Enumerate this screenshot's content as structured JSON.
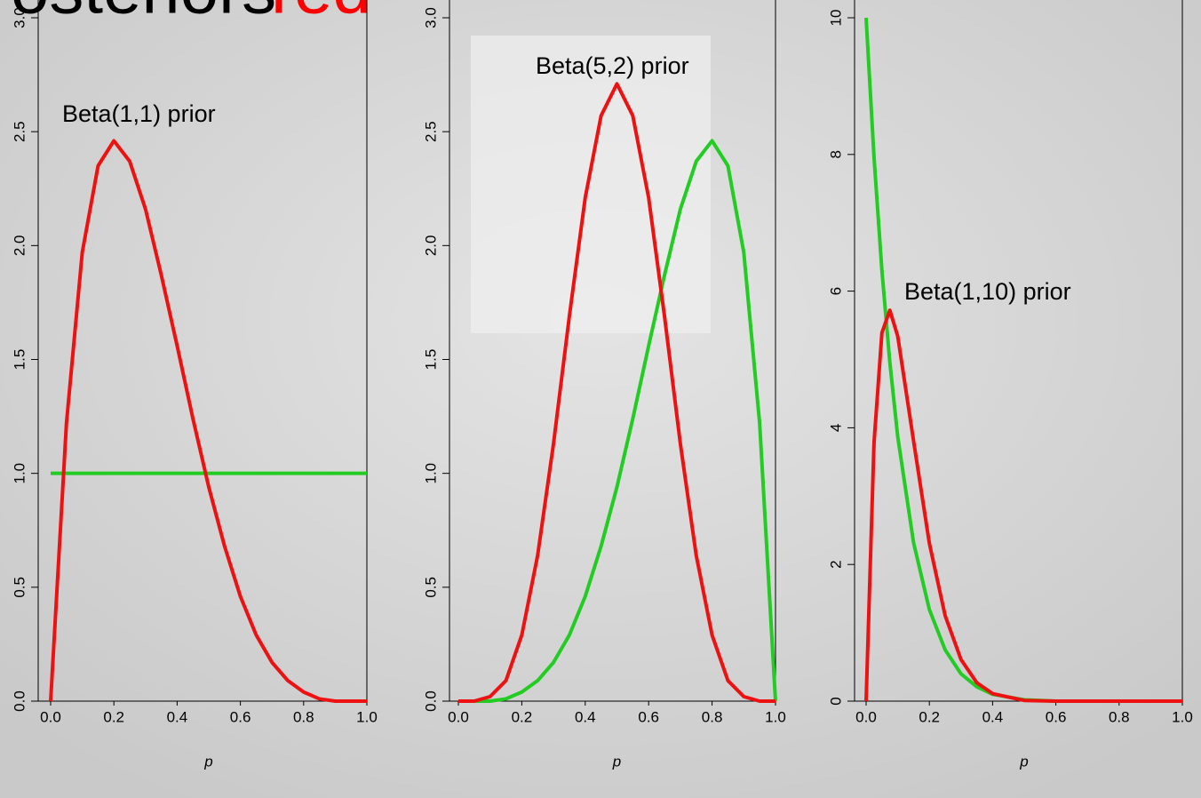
{
  "banner": [
    "Posteriors",
    "red"
  ],
  "chart_data": [
    {
      "type": "line",
      "annotation": "Beta(1,1) prior",
      "xlabel": "p",
      "xlim": [
        0,
        1
      ],
      "ylim": [
        0,
        3
      ],
      "xticks": [
        {
          "value": 0,
          "label": "0.0"
        },
        {
          "value": 0.2,
          "label": "0.2"
        },
        {
          "value": 0.4,
          "label": "0.4"
        },
        {
          "value": 0.6,
          "label": "0.6"
        },
        {
          "value": 0.8,
          "label": "0.8"
        },
        {
          "value": 1,
          "label": "1.0"
        }
      ],
      "yticks": [
        {
          "value": 0,
          "label": "0.0"
        },
        {
          "value": 0.5,
          "label": "0.5"
        },
        {
          "value": 1,
          "label": "1.0"
        },
        {
          "value": 1.5,
          "label": "1.5"
        },
        {
          "value": 2,
          "label": "2.0"
        },
        {
          "value": 2.5,
          "label": "2.5"
        },
        {
          "value": 3,
          "label": "3.0"
        }
      ],
      "series": [
        {
          "color": "#22cc22",
          "x": [
            0,
            1
          ],
          "values": [
            1,
            1
          ]
        },
        {
          "color": "#ee1111",
          "x": [
            0,
            0.05,
            0.1,
            0.15,
            0.2,
            0.25,
            0.3,
            0.35,
            0.4,
            0.45,
            0.5,
            0.55,
            0.6,
            0.65,
            0.7,
            0.75,
            0.8,
            0.85,
            0.9,
            0.95,
            1
          ],
          "values": [
            0,
            1.22,
            1.97,
            2.35,
            2.46,
            2.37,
            2.16,
            1.87,
            1.56,
            1.24,
            0.94,
            0.68,
            0.46,
            0.29,
            0.17,
            0.09,
            0.04,
            0.01,
            0,
            0,
            0
          ]
        }
      ]
    },
    {
      "type": "line",
      "annotation": "Beta(5,2) prior",
      "xlabel": "p",
      "xlim": [
        0,
        1
      ],
      "ylim": [
        0,
        3
      ],
      "xticks": [
        {
          "value": 0,
          "label": "0.0"
        },
        {
          "value": 0.2,
          "label": "0.2"
        },
        {
          "value": 0.4,
          "label": "0.4"
        },
        {
          "value": 0.6,
          "label": "0.6"
        },
        {
          "value": 0.8,
          "label": "0.8"
        },
        {
          "value": 1,
          "label": "1.0"
        }
      ],
      "yticks": [
        {
          "value": 0,
          "label": "0.0"
        },
        {
          "value": 0.5,
          "label": "0.5"
        },
        {
          "value": 1,
          "label": "1.0"
        },
        {
          "value": 1.5,
          "label": "1.5"
        },
        {
          "value": 2,
          "label": "2.0"
        },
        {
          "value": 2.5,
          "label": "2.5"
        },
        {
          "value": 3,
          "label": "3.0"
        }
      ],
      "series": [
        {
          "color": "#22cc22",
          "x": [
            0,
            0.05,
            0.1,
            0.15,
            0.2,
            0.25,
            0.3,
            0.35,
            0.4,
            0.45,
            0.5,
            0.55,
            0.6,
            0.65,
            0.7,
            0.75,
            0.8,
            0.85,
            0.9,
            0.95,
            1
          ],
          "values": [
            0,
            0,
            0,
            0.01,
            0.04,
            0.09,
            0.17,
            0.29,
            0.46,
            0.68,
            0.94,
            1.24,
            1.56,
            1.87,
            2.16,
            2.37,
            2.46,
            2.35,
            1.97,
            1.22,
            0
          ]
        },
        {
          "color": "#ee1111",
          "x": [
            0,
            0.05,
            0.1,
            0.15,
            0.2,
            0.25,
            0.3,
            0.35,
            0.4,
            0.45,
            0.5,
            0.55,
            0.6,
            0.65,
            0.7,
            0.75,
            0.8,
            0.85,
            0.9,
            0.95,
            1
          ],
          "values": [
            0,
            0,
            0.02,
            0.09,
            0.29,
            0.64,
            1.13,
            1.69,
            2.21,
            2.57,
            2.71,
            2.57,
            2.21,
            1.69,
            1.13,
            0.64,
            0.29,
            0.09,
            0.02,
            0,
            0
          ]
        }
      ]
    },
    {
      "type": "line",
      "annotation": "Beta(1,10) prior",
      "xlabel": "p",
      "xlim": [
        0,
        1
      ],
      "ylim": [
        0,
        10
      ],
      "xticks": [
        {
          "value": 0,
          "label": "0.0"
        },
        {
          "value": 0.2,
          "label": "0.2"
        },
        {
          "value": 0.4,
          "label": "0.4"
        },
        {
          "value": 0.6,
          "label": "0.6"
        },
        {
          "value": 0.8,
          "label": "0.8"
        },
        {
          "value": 1,
          "label": "1.0"
        }
      ],
      "yticks": [
        0,
        2,
        4,
        6,
        8,
        10
      ],
      "series": [
        {
          "color": "#22cc22",
          "x": [
            0,
            0.025,
            0.05,
            0.075,
            0.1,
            0.15,
            0.2,
            0.25,
            0.3,
            0.35,
            0.4,
            0.5,
            0.6,
            0.8,
            1
          ],
          "values": [
            10,
            7.96,
            6.3,
            4.96,
            3.87,
            2.32,
            1.34,
            0.75,
            0.4,
            0.21,
            0.1,
            0.02,
            0,
            0,
            0
          ]
        },
        {
          "color": "#ee1111",
          "x": [
            0,
            0.025,
            0.05,
            0.075,
            0.1,
            0.15,
            0.2,
            0.25,
            0.3,
            0.35,
            0.4,
            0.5,
            0.6,
            0.8,
            1
          ],
          "values": [
            0,
            3.78,
            5.39,
            5.72,
            5.34,
            3.81,
            2.31,
            1.25,
            0.61,
            0.27,
            0.11,
            0.01,
            0,
            0,
            0
          ]
        }
      ]
    }
  ]
}
